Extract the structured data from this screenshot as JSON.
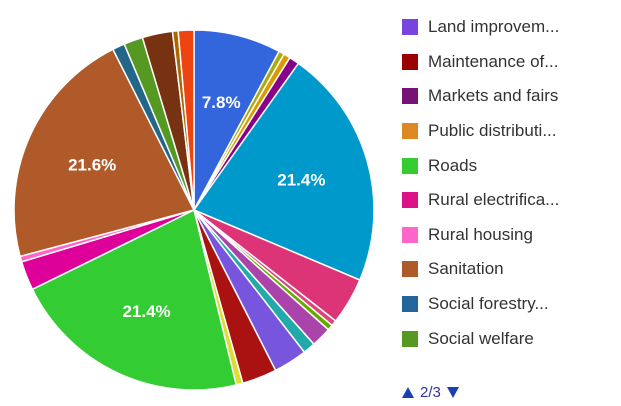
{
  "chart_data": {
    "type": "pie",
    "start_angle_deg": 0,
    "slices": [
      {
        "name": "s1",
        "value": 7.8,
        "color": "#3366dd",
        "label": "7.8%"
      },
      {
        "name": "s2",
        "value": 0.5,
        "color": "#aaaa11",
        "label": ""
      },
      {
        "name": "s3",
        "value": 0.6,
        "color": "#dd9900",
        "label": ""
      },
      {
        "name": "s4",
        "value": 0.9,
        "color": "#880088",
        "label": ""
      },
      {
        "name": "s5",
        "value": 21.4,
        "color": "#0099cc",
        "label": "21.4%"
      },
      {
        "name": "s6",
        "value": 4.2,
        "color": "#dd3377",
        "label": ""
      },
      {
        "name": "s7",
        "value": 0.5,
        "color": "#dd4477",
        "label": ""
      },
      {
        "name": "s8",
        "value": 0.5,
        "color": "#66aa00",
        "label": ""
      },
      {
        "name": "s9",
        "value": 1.8,
        "color": "#aa44aa",
        "label": ""
      },
      {
        "name": "s10",
        "value": 1.1,
        "color": "#22aaaa",
        "label": ""
      },
      {
        "name": "s11",
        "value": 3.0,
        "color": "#7755dd",
        "label": ""
      },
      {
        "name": "s12",
        "value": 3.1,
        "color": "#aa1111",
        "label": ""
      },
      {
        "name": "s13",
        "value": 0.6,
        "color": "#dddd33",
        "label": ""
      },
      {
        "name": "s14",
        "value": 21.4,
        "color": "#33cc33",
        "label": "21.4%"
      },
      {
        "name": "s15",
        "value": 2.6,
        "color": "#dd0099",
        "label": ""
      },
      {
        "name": "s16",
        "value": 0.5,
        "color": "#ff66cc",
        "label": ""
      },
      {
        "name": "s17",
        "value": 21.6,
        "color": "#b05a2a",
        "label": "21.6%"
      },
      {
        "name": "s18",
        "value": 1.1,
        "color": "#226688",
        "label": ""
      },
      {
        "name": "s19",
        "value": 1.7,
        "color": "#559922",
        "label": ""
      },
      {
        "name": "s20",
        "value": 2.7,
        "color": "#773311",
        "label": ""
      },
      {
        "name": "s21",
        "value": 0.5,
        "color": "#aa6600",
        "label": ""
      },
      {
        "name": "s22",
        "value": 1.4,
        "color": "#ee4411",
        "label": ""
      }
    ],
    "legend": [
      {
        "label": "Land improvem...",
        "color": "#7744dd"
      },
      {
        "label": "Maintenance of...",
        "color": "#990000"
      },
      {
        "label": "Markets and fairs",
        "color": "#771177"
      },
      {
        "label": "Public distributi...",
        "color": "#dd8822"
      },
      {
        "label": "Roads",
        "color": "#33cc33"
      },
      {
        "label": "Rural electrifica...",
        "color": "#dd1188"
      },
      {
        "label": "Rural housing",
        "color": "#ff66cc"
      },
      {
        "label": "Sanitation",
        "color": "#b05a2a"
      },
      {
        "label": "Social forestry...",
        "color": "#226699"
      },
      {
        "label": "Social welfare",
        "color": "#559922"
      }
    ],
    "legend_position": "right",
    "pager": {
      "text": "2/3"
    }
  }
}
